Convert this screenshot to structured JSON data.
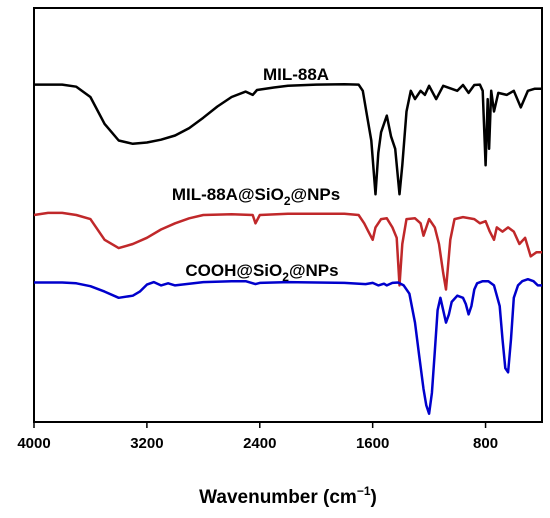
{
  "chart_data": {
    "type": "line",
    "title": "",
    "xlabel": "Wavenumber (cm⁻¹)",
    "ylabel": "",
    "x_reversed": true,
    "xlim": [
      4000,
      400
    ],
    "ylim": [
      0,
      1
    ],
    "xticks": [
      4000,
      3200,
      2400,
      1600,
      800
    ],
    "xtick_labels": [
      "4000",
      "3200",
      "2400",
      "1600",
      "800"
    ],
    "grid": false,
    "legend": "inline labels above each trace",
    "series": [
      {
        "name": "MIL-88A",
        "label_main": "MIL-88A",
        "color": "#000000",
        "points": [
          [
            4000,
            0.815
          ],
          [
            3900,
            0.815
          ],
          [
            3800,
            0.815
          ],
          [
            3700,
            0.81
          ],
          [
            3600,
            0.785
          ],
          [
            3500,
            0.72
          ],
          [
            3400,
            0.68
          ],
          [
            3300,
            0.672
          ],
          [
            3200,
            0.675
          ],
          [
            3100,
            0.682
          ],
          [
            3000,
            0.692
          ],
          [
            2900,
            0.71
          ],
          [
            2800,
            0.735
          ],
          [
            2700,
            0.762
          ],
          [
            2600,
            0.785
          ],
          [
            2500,
            0.798
          ],
          [
            2450,
            0.79
          ],
          [
            2420,
            0.802
          ],
          [
            2300,
            0.808
          ],
          [
            2200,
            0.812
          ],
          [
            2000,
            0.815
          ],
          [
            1800,
            0.816
          ],
          [
            1700,
            0.815
          ],
          [
            1670,
            0.8
          ],
          [
            1640,
            0.74
          ],
          [
            1610,
            0.68
          ],
          [
            1580,
            0.55
          ],
          [
            1560,
            0.65
          ],
          [
            1540,
            0.7
          ],
          [
            1500,
            0.74
          ],
          [
            1470,
            0.69
          ],
          [
            1440,
            0.66
          ],
          [
            1410,
            0.55
          ],
          [
            1390,
            0.62
          ],
          [
            1360,
            0.75
          ],
          [
            1330,
            0.8
          ],
          [
            1300,
            0.78
          ],
          [
            1260,
            0.8
          ],
          [
            1230,
            0.79
          ],
          [
            1200,
            0.812
          ],
          [
            1150,
            0.78
          ],
          [
            1100,
            0.812
          ],
          [
            1000,
            0.8
          ],
          [
            960,
            0.814
          ],
          [
            920,
            0.795
          ],
          [
            880,
            0.814
          ],
          [
            840,
            0.815
          ],
          [
            820,
            0.8
          ],
          [
            800,
            0.62
          ],
          [
            785,
            0.78
          ],
          [
            775,
            0.66
          ],
          [
            760,
            0.8
          ],
          [
            740,
            0.75
          ],
          [
            710,
            0.795
          ],
          [
            650,
            0.79
          ],
          [
            600,
            0.8
          ],
          [
            550,
            0.76
          ],
          [
            500,
            0.8
          ],
          [
            450,
            0.805
          ],
          [
            400,
            0.805
          ]
        ]
      },
      {
        "name": "MIL-88A@SiO2@NPs",
        "label_main": "MIL-88A@SiO",
        "label_sub": "2",
        "label_tail": "@NPs",
        "color": "#c0282a",
        "points": [
          [
            4000,
            0.5
          ],
          [
            3900,
            0.505
          ],
          [
            3800,
            0.505
          ],
          [
            3700,
            0.5
          ],
          [
            3600,
            0.49
          ],
          [
            3500,
            0.44
          ],
          [
            3400,
            0.42
          ],
          [
            3300,
            0.43
          ],
          [
            3200,
            0.445
          ],
          [
            3100,
            0.465
          ],
          [
            3000,
            0.48
          ],
          [
            2900,
            0.492
          ],
          [
            2800,
            0.5
          ],
          [
            2600,
            0.502
          ],
          [
            2450,
            0.5
          ],
          [
            2430,
            0.48
          ],
          [
            2400,
            0.5
          ],
          [
            2200,
            0.503
          ],
          [
            2000,
            0.503
          ],
          [
            1800,
            0.503
          ],
          [
            1700,
            0.5
          ],
          [
            1660,
            0.48
          ],
          [
            1630,
            0.46
          ],
          [
            1600,
            0.44
          ],
          [
            1580,
            0.47
          ],
          [
            1540,
            0.49
          ],
          [
            1500,
            0.492
          ],
          [
            1460,
            0.47
          ],
          [
            1430,
            0.445
          ],
          [
            1410,
            0.33
          ],
          [
            1390,
            0.43
          ],
          [
            1360,
            0.49
          ],
          [
            1300,
            0.492
          ],
          [
            1260,
            0.48
          ],
          [
            1240,
            0.45
          ],
          [
            1200,
            0.49
          ],
          [
            1160,
            0.47
          ],
          [
            1130,
            0.43
          ],
          [
            1100,
            0.36
          ],
          [
            1080,
            0.32
          ],
          [
            1050,
            0.44
          ],
          [
            1020,
            0.49
          ],
          [
            960,
            0.495
          ],
          [
            880,
            0.49
          ],
          [
            840,
            0.48
          ],
          [
            800,
            0.485
          ],
          [
            770,
            0.46
          ],
          [
            740,
            0.44
          ],
          [
            720,
            0.47
          ],
          [
            680,
            0.46
          ],
          [
            640,
            0.47
          ],
          [
            600,
            0.46
          ],
          [
            560,
            0.43
          ],
          [
            520,
            0.445
          ],
          [
            480,
            0.4
          ],
          [
            440,
            0.41
          ],
          [
            400,
            0.41
          ]
        ]
      },
      {
        "name": "COOH@SiO2@NPs",
        "label_main": "COOH@SiO",
        "label_sub": "2",
        "label_tail": "@NPs",
        "color": "#0000cc",
        "points": [
          [
            4000,
            0.337
          ],
          [
            3800,
            0.337
          ],
          [
            3700,
            0.335
          ],
          [
            3600,
            0.328
          ],
          [
            3500,
            0.315
          ],
          [
            3400,
            0.3
          ],
          [
            3300,
            0.305
          ],
          [
            3250,
            0.315
          ],
          [
            3200,
            0.332
          ],
          [
            3150,
            0.338
          ],
          [
            3100,
            0.33
          ],
          [
            3050,
            0.335
          ],
          [
            3000,
            0.33
          ],
          [
            2900,
            0.334
          ],
          [
            2800,
            0.338
          ],
          [
            2600,
            0.34
          ],
          [
            2500,
            0.34
          ],
          [
            2430,
            0.333
          ],
          [
            2400,
            0.336
          ],
          [
            2200,
            0.338
          ],
          [
            2000,
            0.337
          ],
          [
            1800,
            0.336
          ],
          [
            1650,
            0.333
          ],
          [
            1600,
            0.336
          ],
          [
            1560,
            0.33
          ],
          [
            1520,
            0.334
          ],
          [
            1500,
            0.33
          ],
          [
            1460,
            0.336
          ],
          [
            1420,
            0.337
          ],
          [
            1380,
            0.33
          ],
          [
            1340,
            0.31
          ],
          [
            1300,
            0.24
          ],
          [
            1270,
            0.16
          ],
          [
            1240,
            0.08
          ],
          [
            1220,
            0.04
          ],
          [
            1200,
            0.02
          ],
          [
            1180,
            0.07
          ],
          [
            1160,
            0.17
          ],
          [
            1140,
            0.27
          ],
          [
            1120,
            0.3
          ],
          [
            1100,
            0.27
          ],
          [
            1080,
            0.24
          ],
          [
            1060,
            0.26
          ],
          [
            1040,
            0.29
          ],
          [
            1000,
            0.305
          ],
          [
            960,
            0.3
          ],
          [
            940,
            0.285
          ],
          [
            920,
            0.26
          ],
          [
            900,
            0.28
          ],
          [
            880,
            0.32
          ],
          [
            860,
            0.335
          ],
          [
            820,
            0.34
          ],
          [
            780,
            0.34
          ],
          [
            740,
            0.33
          ],
          [
            700,
            0.28
          ],
          [
            680,
            0.2
          ],
          [
            660,
            0.13
          ],
          [
            640,
            0.12
          ],
          [
            620,
            0.2
          ],
          [
            600,
            0.3
          ],
          [
            570,
            0.33
          ],
          [
            540,
            0.34
          ],
          [
            500,
            0.345
          ],
          [
            460,
            0.34
          ],
          [
            430,
            0.33
          ],
          [
            400,
            0.33
          ]
        ]
      }
    ]
  }
}
